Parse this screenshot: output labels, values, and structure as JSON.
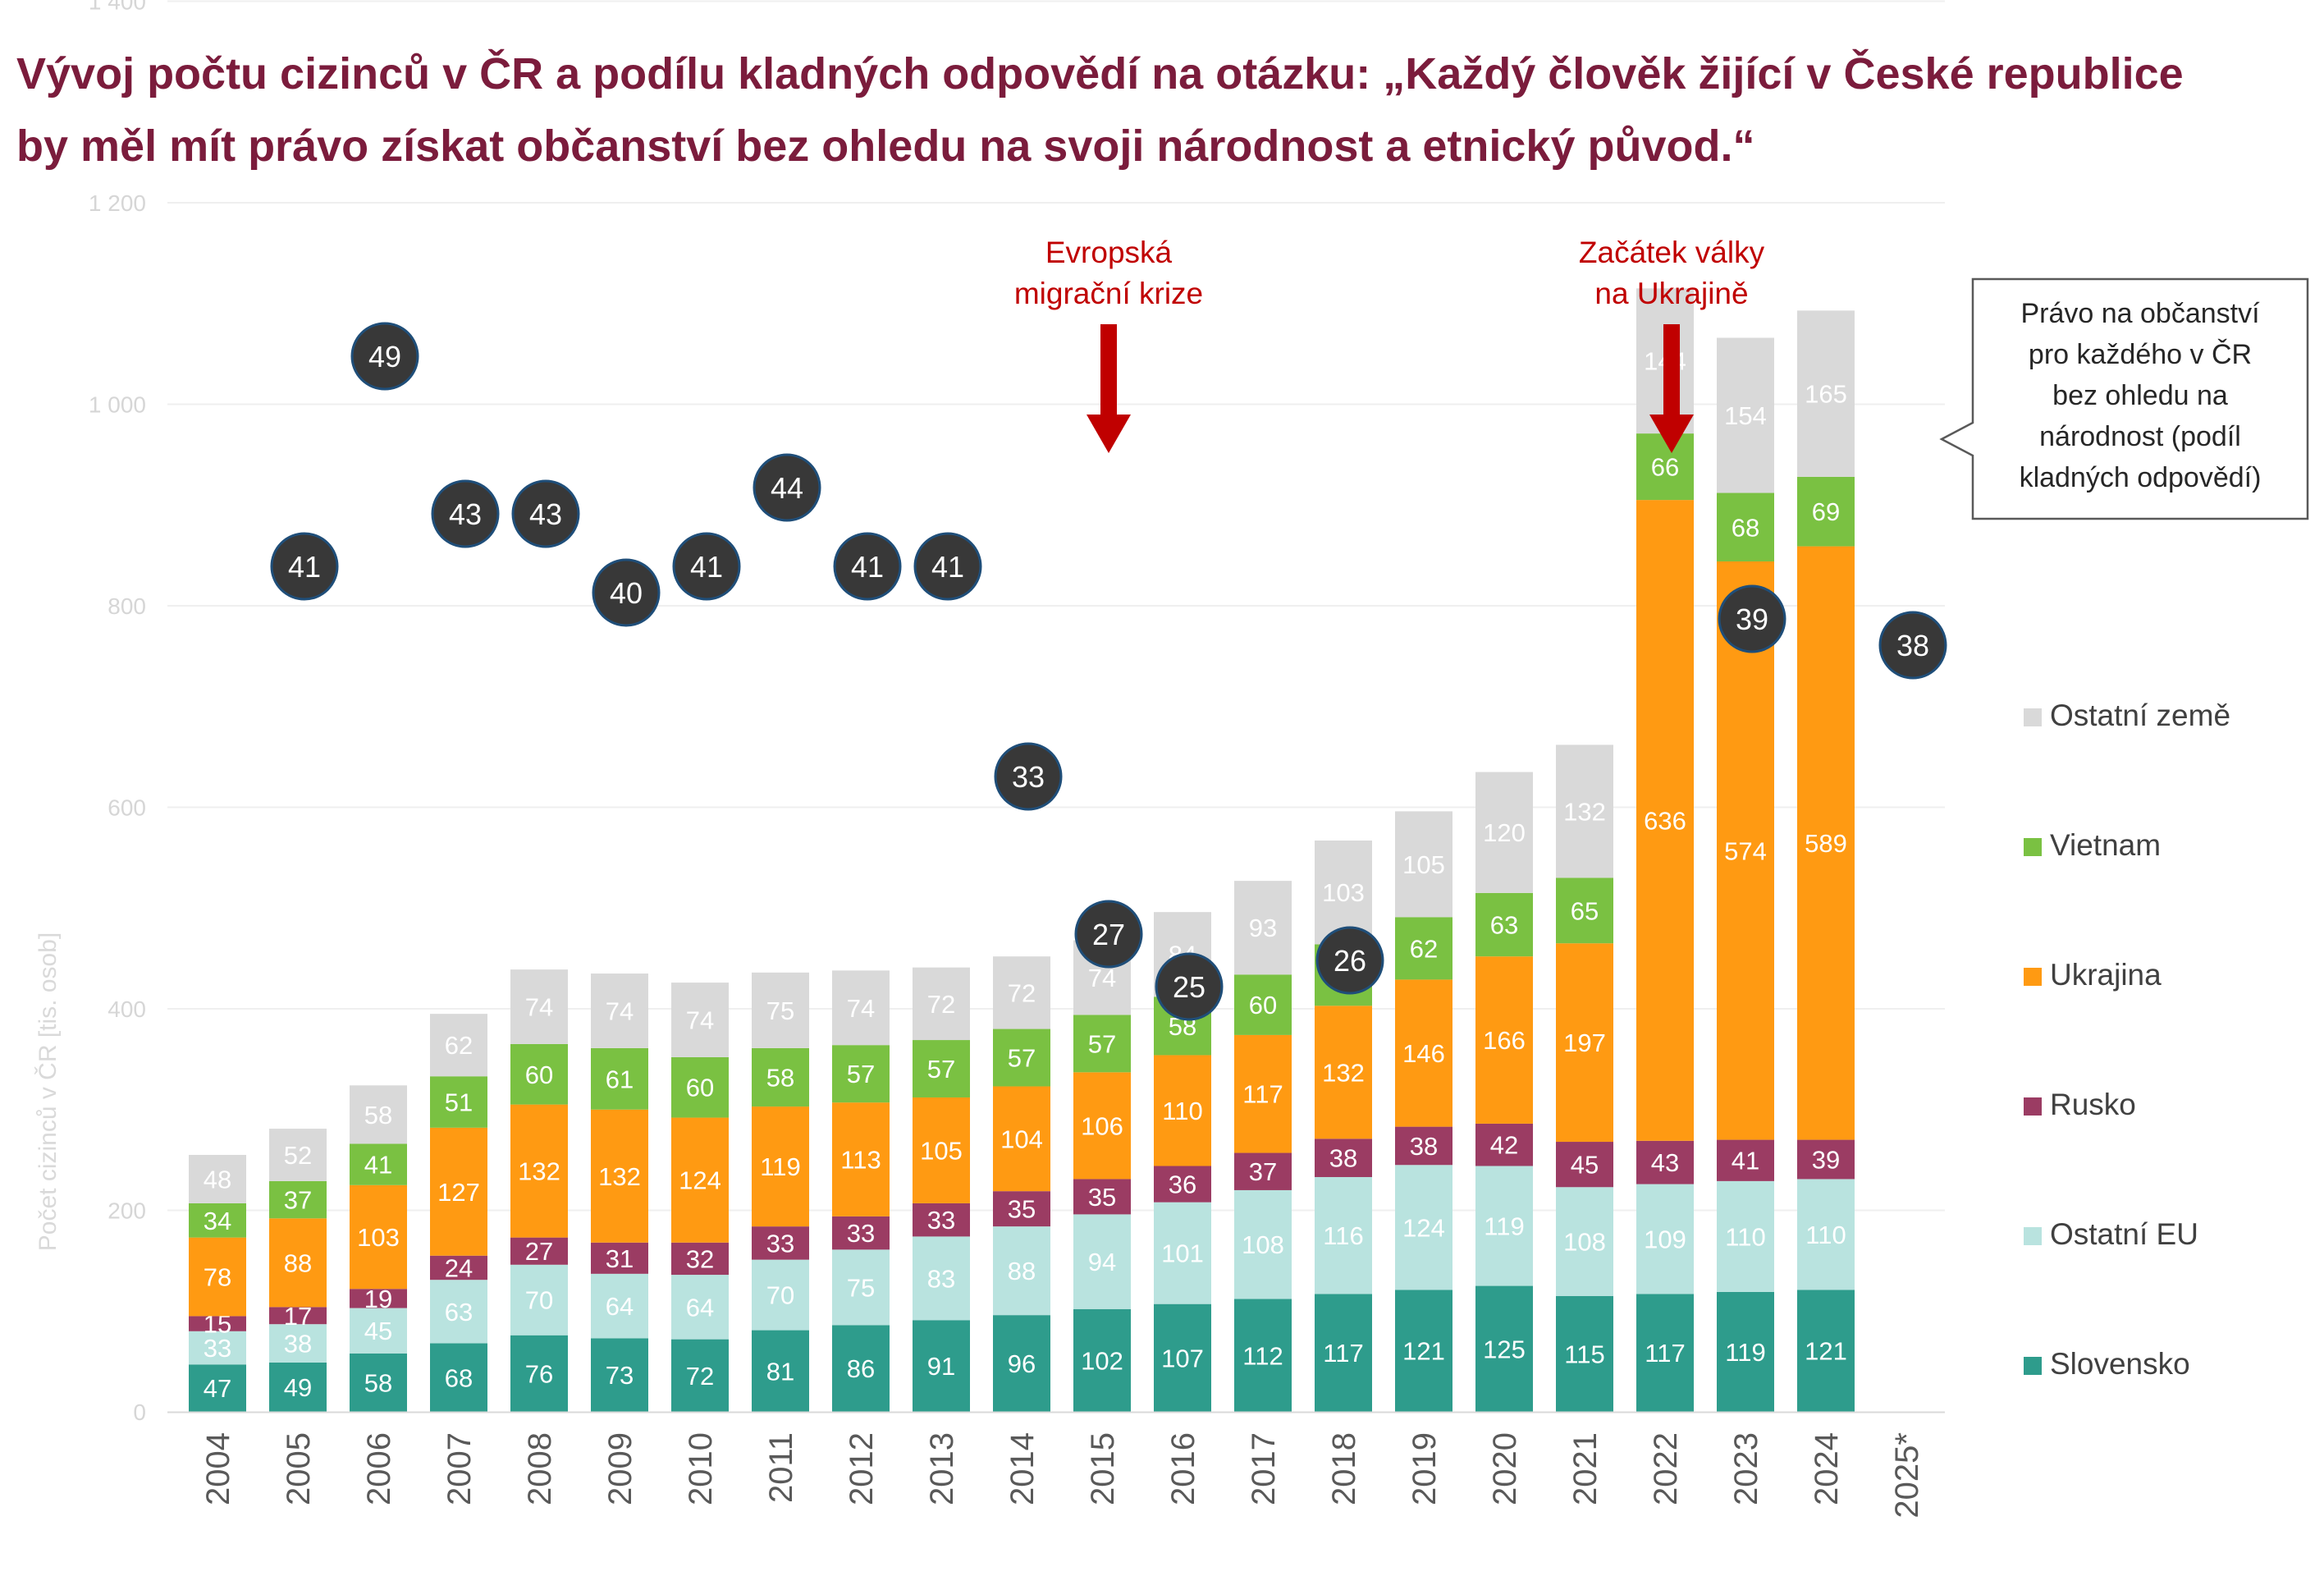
{
  "title": {
    "line1": "Vývoj počtu cizinců v ČR a podílu kladných odpovědí na otázku: „Každý člověk žijící v České republice",
    "line2": "by měl mít právo získat občanství bez ohledu na svoji národnost a etnický původ.“"
  },
  "chart_data": {
    "type": "bar",
    "stacked": true,
    "ylabel": "Počet cizinců v ČR [tis. osob]",
    "ylim": [
      0,
      1400
    ],
    "yticks": [
      "0",
      "200",
      "400",
      "600",
      "800",
      "1 000",
      "1 200",
      "1 400"
    ],
    "grid": true,
    "legend_position": "right",
    "categories": [
      "2004",
      "2005",
      "2006",
      "2007",
      "2008",
      "2009",
      "2010",
      "2011",
      "2012",
      "2013",
      "2014",
      "2015",
      "2016",
      "2017",
      "2018",
      "2019",
      "2020",
      "2021",
      "2022",
      "2023",
      "2024",
      "2025*"
    ],
    "series": [
      {
        "name": "Slovensko",
        "color": "#2e9c8c",
        "label_color": "#ffffff",
        "values": [
          47,
          49,
          58,
          68,
          76,
          73,
          72,
          81,
          86,
          91,
          96,
          102,
          107,
          112,
          117,
          121,
          125,
          115,
          117,
          119,
          121,
          null
        ]
      },
      {
        "name": "Ostatní EU",
        "color": "#b9e3df",
        "label_color": "#ffffff",
        "values": [
          33,
          38,
          45,
          63,
          70,
          64,
          64,
          70,
          75,
          83,
          88,
          94,
          101,
          108,
          116,
          124,
          119,
          108,
          109,
          110,
          110,
          null
        ]
      },
      {
        "name": "Rusko",
        "color": "#9b3c63",
        "label_color": "#ffffff",
        "values": [
          15,
          17,
          19,
          24,
          27,
          31,
          32,
          33,
          33,
          33,
          35,
          35,
          36,
          37,
          38,
          38,
          42,
          45,
          43,
          41,
          39,
          null
        ]
      },
      {
        "name": "Ukrajina",
        "color": "#ff9a12",
        "label_color": "#ffffff",
        "values": [
          78,
          88,
          103,
          127,
          132,
          132,
          124,
          119,
          113,
          105,
          104,
          106,
          110,
          117,
          132,
          146,
          166,
          197,
          636,
          574,
          589,
          null
        ]
      },
      {
        "name": "Vietnam",
        "color": "#7ac142",
        "label_color": "#ffffff",
        "values": [
          34,
          37,
          41,
          51,
          60,
          61,
          60,
          58,
          57,
          57,
          57,
          57,
          58,
          60,
          61,
          62,
          63,
          65,
          66,
          68,
          69,
          null
        ]
      },
      {
        "name": "Ostatní země",
        "color": "#d9d9d9",
        "label_color": "#ffffff",
        "values": [
          48,
          52,
          58,
          62,
          74,
          74,
          74,
          75,
          74,
          72,
          72,
          74,
          84,
          93,
          103,
          105,
          120,
          132,
          144,
          154,
          165,
          null
        ]
      }
    ],
    "legend_order": [
      "Ostatní země",
      "Vietnam",
      "Ukrajina",
      "Rusko",
      "Ostatní EU",
      "Slovensko"
    ],
    "share_positive_answers": {
      "name": "Právo na občanství pro každého v ČR bez ohledu na národnost (podíl kladných odpovědí)",
      "color": "#383838",
      "points": [
        {
          "x": "2005",
          "value": 41
        },
        {
          "x": "2006",
          "value": 49
        },
        {
          "x": "2007",
          "value": 43
        },
        {
          "x": "2008",
          "value": 43
        },
        {
          "x": "2009",
          "value": 40
        },
        {
          "x": "2010",
          "value": 41
        },
        {
          "x": "2011",
          "value": 44
        },
        {
          "x": "2012",
          "value": 41
        },
        {
          "x": "2013",
          "value": 41
        },
        {
          "x": "2014",
          "value": 33
        },
        {
          "x": "2015",
          "value": 27
        },
        {
          "x": "2016",
          "value": 25
        },
        {
          "x": "2018",
          "value": 26
        },
        {
          "x": "2023",
          "value": 39
        },
        {
          "x": "2025*",
          "value": 38
        }
      ]
    },
    "annotations": [
      {
        "x": "2015",
        "text_lines": [
          "Evropská",
          "migrační krize"
        ],
        "color": "#c00000"
      },
      {
        "x": "2022",
        "text_lines": [
          "Začátek války",
          "na Ukrajině"
        ],
        "color": "#c00000"
      }
    ],
    "callout": {
      "text_lines": [
        "Právo na občanství",
        "pro každého v ČR",
        "bez ohledu na",
        "národnost (podíl",
        "kladných odpovědí)"
      ]
    }
  }
}
